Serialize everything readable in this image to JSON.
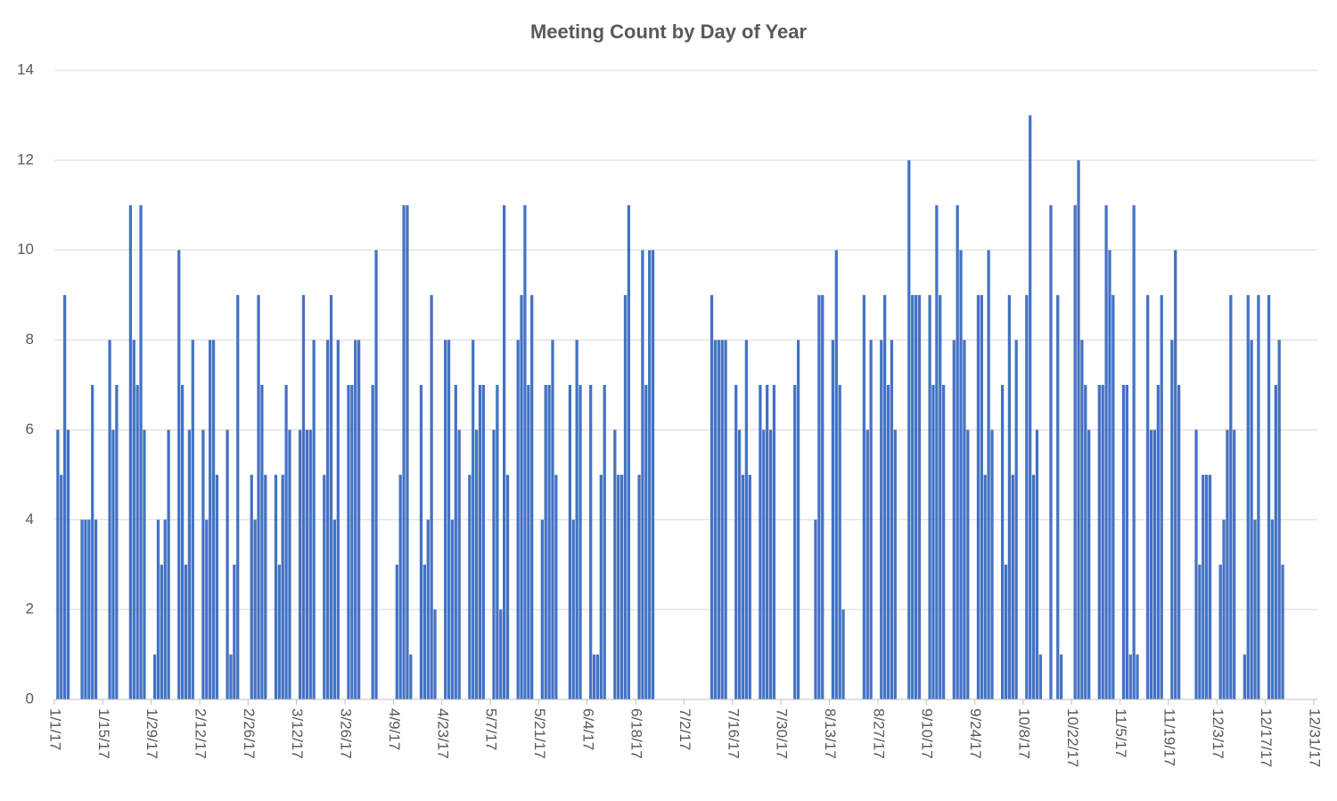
{
  "chart_data": {
    "type": "bar",
    "title": "Meeting Count by Day of Year",
    "color": "#4472c4",
    "grid": true,
    "x": [
      "1/2/17",
      "1/3/17",
      "1/4/17",
      "1/5/17",
      "1/9/17",
      "1/10/17",
      "1/11/17",
      "1/12/17",
      "1/13/17",
      "1/17/17",
      "1/18/17",
      "1/19/17",
      "1/23/17",
      "1/24/17",
      "1/25/17",
      "1/26/17",
      "1/27/17",
      "1/30/17",
      "1/31/17",
      "2/1/17",
      "2/2/17",
      "2/3/17",
      "2/6/17",
      "2/7/17",
      "2/8/17",
      "2/9/17",
      "2/10/17",
      "2/13/17",
      "2/14/17",
      "2/15/17",
      "2/16/17",
      "2/17/17",
      "2/20/17",
      "2/21/17",
      "2/22/17",
      "2/23/17",
      "2/27/17",
      "2/28/17",
      "3/1/17",
      "3/2/17",
      "3/3/17",
      "3/6/17",
      "3/7/17",
      "3/8/17",
      "3/9/17",
      "3/10/17",
      "3/13/17",
      "3/14/17",
      "3/15/17",
      "3/16/17",
      "3/17/17",
      "3/20/17",
      "3/21/17",
      "3/22/17",
      "3/23/17",
      "3/24/17",
      "3/27/17",
      "3/28/17",
      "3/29/17",
      "3/30/17",
      "4/3/17",
      "4/4/17",
      "4/10/17",
      "4/11/17",
      "4/12/17",
      "4/13/17",
      "4/14/17",
      "4/17/17",
      "4/18/17",
      "4/19/17",
      "4/20/17",
      "4/21/17",
      "4/24/17",
      "4/25/17",
      "4/26/17",
      "4/27/17",
      "4/28/17",
      "5/1/17",
      "5/2/17",
      "5/3/17",
      "5/4/17",
      "5/5/17",
      "5/8/17",
      "5/9/17",
      "5/10/17",
      "5/11/17",
      "5/12/17",
      "5/15/17",
      "5/16/17",
      "5/17/17",
      "5/18/17",
      "5/19/17",
      "5/22/17",
      "5/23/17",
      "5/24/17",
      "5/25/17",
      "5/26/17",
      "5/30/17",
      "5/31/17",
      "6/1/17",
      "6/2/17",
      "6/5/17",
      "6/6/17",
      "6/7/17",
      "6/8/17",
      "6/9/17",
      "6/12/17",
      "6/13/17",
      "6/14/17",
      "6/15/17",
      "6/16/17",
      "6/19/17",
      "6/20/17",
      "6/21/17",
      "6/22/17",
      "6/23/17",
      "7/10/17",
      "7/11/17",
      "7/12/17",
      "7/13/17",
      "7/14/17",
      "7/17/17",
      "7/18/17",
      "7/19/17",
      "7/20/17",
      "7/21/17",
      "7/24/17",
      "7/25/17",
      "7/26/17",
      "7/27/17",
      "7/28/17",
      "8/3/17",
      "8/4/17",
      "8/9/17",
      "8/10/17",
      "8/11/17",
      "8/14/17",
      "8/15/17",
      "8/16/17",
      "8/17/17",
      "8/23/17",
      "8/24/17",
      "8/25/17",
      "8/28/17",
      "8/29/17",
      "8/30/17",
      "8/31/17",
      "9/1/17",
      "9/5/17",
      "9/6/17",
      "9/7/17",
      "9/8/17",
      "9/11/17",
      "9/12/17",
      "9/13/17",
      "9/14/17",
      "9/15/17",
      "9/18/17",
      "9/19/17",
      "9/20/17",
      "9/21/17",
      "9/22/17",
      "9/25/17",
      "9/26/17",
      "9/27/17",
      "9/28/17",
      "9/29/17",
      "10/2/17",
      "10/3/17",
      "10/4/17",
      "10/5/17",
      "10/6/17",
      "10/9/17",
      "10/10/17",
      "10/11/17",
      "10/12/17",
      "10/13/17",
      "10/16/17",
      "10/18/17",
      "10/19/17",
      "10/23/17",
      "10/24/17",
      "10/25/17",
      "10/26/17",
      "10/27/17",
      "10/30/17",
      "10/31/17",
      "11/1/17",
      "11/2/17",
      "11/3/17",
      "11/6/17",
      "11/7/17",
      "11/8/17",
      "11/9/17",
      "11/10/17",
      "11/13/17",
      "11/14/17",
      "11/15/17",
      "11/16/17",
      "11/17/17",
      "11/20/17",
      "11/21/17",
      "11/22/17",
      "11/27/17",
      "11/28/17",
      "11/29/17",
      "11/30/17",
      "12/1/17",
      "12/4/17",
      "12/5/17",
      "12/6/17",
      "12/7/17",
      "12/8/17",
      "12/11/17",
      "12/12/17",
      "12/13/17",
      "12/14/17",
      "12/15/17",
      "12/18/17",
      "12/19/17",
      "12/20/17",
      "12/21/17",
      "12/22/17"
    ],
    "values": [
      6,
      5,
      9,
      6,
      4,
      4,
      4,
      7,
      4,
      8,
      6,
      7,
      11,
      8,
      7,
      11,
      6,
      1,
      4,
      3,
      4,
      6,
      10,
      7,
      3,
      6,
      8,
      6,
      4,
      8,
      8,
      5,
      6,
      1,
      3,
      9,
      5,
      4,
      9,
      7,
      5,
      5,
      3,
      5,
      7,
      6,
      6,
      9,
      6,
      6,
      8,
      5,
      8,
      9,
      4,
      8,
      7,
      7,
      8,
      8,
      7,
      10,
      3,
      5,
      11,
      11,
      1,
      7,
      3,
      4,
      9,
      2,
      8,
      8,
      4,
      7,
      6,
      5,
      8,
      6,
      7,
      7,
      6,
      7,
      2,
      11,
      5,
      8,
      9,
      11,
      7,
      9,
      4,
      7,
      7,
      8,
      5,
      7,
      4,
      8,
      7,
      7,
      1,
      1,
      5,
      7,
      6,
      5,
      5,
      9,
      11,
      5,
      10,
      7,
      10,
      10,
      9,
      8,
      8,
      8,
      8,
      7,
      6,
      5,
      8,
      5,
      7,
      6,
      7,
      6,
      7,
      7,
      8,
      4,
      9,
      9,
      8,
      10,
      7,
      2,
      9,
      6,
      8,
      8,
      9,
      7,
      8,
      6,
      12,
      9,
      9,
      9,
      9,
      7,
      11,
      9,
      7,
      8,
      11,
      10,
      8,
      6,
      9,
      9,
      5,
      10,
      6,
      7,
      3,
      9,
      5,
      8,
      9,
      13,
      5,
      6,
      1,
      11,
      9,
      1,
      11,
      12,
      8,
      7,
      6,
      7,
      7,
      11,
      10,
      9,
      7,
      7,
      1,
      11,
      1,
      9,
      6,
      6,
      7,
      9,
      8,
      10,
      7,
      6,
      3,
      5,
      5,
      5,
      3,
      4,
      6,
      9,
      6,
      1,
      9,
      8,
      4,
      9,
      9,
      4,
      7,
      8,
      3
    ],
    "xlim": [
      "1/1/17",
      "12/31/17"
    ],
    "xticks": [
      "1/1/17",
      "1/15/17",
      "1/29/17",
      "2/12/17",
      "2/26/17",
      "3/12/17",
      "3/26/17",
      "4/9/17",
      "4/23/17",
      "5/7/17",
      "5/21/17",
      "6/4/17",
      "6/18/17",
      "7/2/17",
      "7/16/17",
      "7/30/17",
      "8/13/17",
      "8/27/17",
      "9/10/17",
      "9/24/17",
      "10/8/17",
      "10/22/17",
      "11/5/17",
      "11/19/17",
      "12/3/17",
      "12/17/17",
      "12/31/17"
    ],
    "ylim": [
      0,
      14
    ],
    "yticks": [
      0,
      2,
      4,
      6,
      8,
      10,
      12,
      14
    ]
  }
}
